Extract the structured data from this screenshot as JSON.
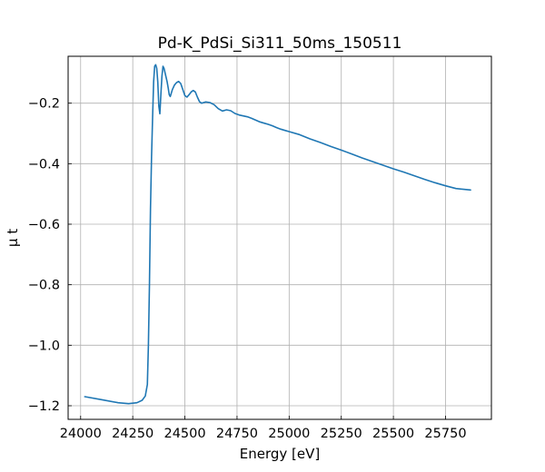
{
  "chart_data": {
    "type": "line",
    "title": "Pd-K_PdSi_Si311_50ms_150511",
    "xlabel": "Energy [eV]",
    "ylabel": "μ t",
    "xlim": [
      23940,
      25970
    ],
    "ylim": [
      -1.245,
      -0.045
    ],
    "xticks": [
      24000,
      24250,
      24500,
      24750,
      25000,
      25250,
      25500,
      25750
    ],
    "xtick_labels": [
      "24000",
      "24250",
      "24500",
      "24750",
      "25000",
      "25250",
      "25500",
      "25750"
    ],
    "yticks": [
      -1.2,
      -1.0,
      -0.8,
      -0.6,
      -0.4,
      -0.2
    ],
    "ytick_labels": [
      "−1.2",
      "−1.0",
      "−0.8",
      "−0.6",
      "−0.4",
      "−0.2"
    ],
    "grid": true,
    "series": [
      {
        "color": "#1f77b4",
        "x": [
          24020,
          24100,
          24180,
          24230,
          24270,
          24295,
          24310,
          24320,
          24325,
          24330,
          24335,
          24340,
          24345,
          24350,
          24355,
          24360,
          24365,
          24370,
          24375,
          24380,
          24385,
          24390,
          24395,
          24400,
          24405,
          24410,
          24415,
          24420,
          24425,
          24430,
          24440,
          24450,
          24460,
          24470,
          24480,
          24490,
          24500,
          24510,
          24520,
          24530,
          24540,
          24550,
          24560,
          24570,
          24580,
          24590,
          24600,
          24620,
          24640,
          24660,
          24680,
          24700,
          24720,
          24740,
          24760,
          24780,
          24800,
          24820,
          24840,
          24860,
          24880,
          24900,
          24920,
          24940,
          24960,
          24980,
          25000,
          25050,
          25100,
          25150,
          25200,
          25250,
          25300,
          25350,
          25400,
          25450,
          25500,
          25550,
          25600,
          25650,
          25700,
          25750,
          25800,
          25870
        ],
        "y": [
          -1.17,
          -1.18,
          -1.19,
          -1.193,
          -1.19,
          -1.182,
          -1.168,
          -1.13,
          -1.0,
          -0.8,
          -0.55,
          -0.38,
          -0.25,
          -0.13,
          -0.078,
          -0.073,
          -0.085,
          -0.13,
          -0.21,
          -0.235,
          -0.17,
          -0.11,
          -0.078,
          -0.085,
          -0.1,
          -0.115,
          -0.13,
          -0.15,
          -0.172,
          -0.178,
          -0.155,
          -0.14,
          -0.132,
          -0.128,
          -0.135,
          -0.155,
          -0.175,
          -0.18,
          -0.172,
          -0.163,
          -0.158,
          -0.163,
          -0.18,
          -0.195,
          -0.2,
          -0.198,
          -0.196,
          -0.198,
          -0.205,
          -0.218,
          -0.226,
          -0.222,
          -0.225,
          -0.234,
          -0.239,
          -0.242,
          -0.245,
          -0.25,
          -0.256,
          -0.262,
          -0.266,
          -0.27,
          -0.275,
          -0.281,
          -0.286,
          -0.29,
          -0.294,
          -0.304,
          -0.318,
          -0.33,
          -0.343,
          -0.355,
          -0.368,
          -0.381,
          -0.393,
          -0.405,
          -0.417,
          -0.428,
          -0.44,
          -0.452,
          -0.463,
          -0.473,
          -0.482,
          -0.487
        ]
      }
    ]
  }
}
